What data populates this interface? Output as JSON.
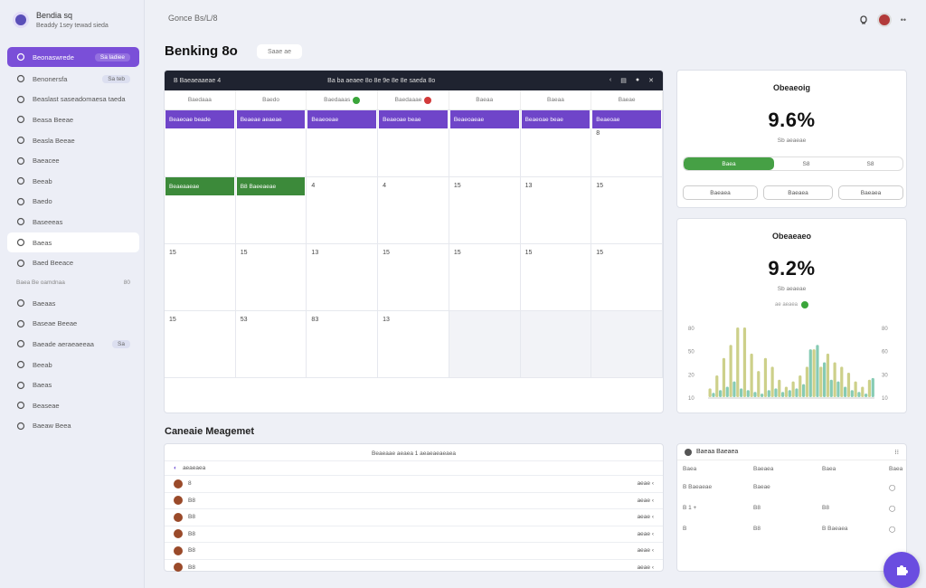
{
  "brand": {
    "name": "Bendia sq",
    "tagline": "Beaddy 1sey tewad sieda"
  },
  "sidebar": {
    "items": [
      {
        "label": "Beonaswrede",
        "badge": "Sa ladiee",
        "icon": "calendar-icon",
        "active": true
      },
      {
        "label": "Benonersfa",
        "badge": "Sa teb",
        "icon": "grid-icon"
      },
      {
        "label": "Beaslast saseadomaesa taeda",
        "icon": "clock-icon"
      },
      {
        "label": "Beasa Beeae",
        "icon": "chart-icon"
      },
      {
        "label": "Beasla Beeae",
        "icon": "chart-icon"
      },
      {
        "label": "Baeacee",
        "icon": "user-icon"
      },
      {
        "label": "Beeab",
        "icon": "user-icon"
      },
      {
        "label": "Baedo",
        "icon": "tag-icon"
      },
      {
        "label": "Baseeeas",
        "icon": "users-icon"
      },
      {
        "label": "Baeas",
        "icon": "gear-icon",
        "highlight": true
      },
      {
        "label": "Baed Beeace",
        "icon": "folder-icon"
      }
    ],
    "section_label": "Baea Be oamdnaa",
    "section_badge": "80",
    "items2": [
      {
        "label": "Baeaas",
        "icon": "user-icon"
      },
      {
        "label": "Baseae Beeae",
        "icon": "clock-icon"
      },
      {
        "label": "Baeade aeraeaeeaa",
        "badge": "Sa",
        "icon": "clock-icon"
      },
      {
        "label": "Beeab",
        "icon": "user-icon"
      },
      {
        "label": "Baeas",
        "icon": "user-icon"
      },
      {
        "label": "Beaseae",
        "icon": "user-icon"
      },
      {
        "label": "Baeaw Beea",
        "icon": "users-icon"
      }
    ]
  },
  "header": {
    "breadcrumb": "Gonce Bs/L/8",
    "title": "Benking 8o",
    "title_pill": "Saae ae"
  },
  "calendar": {
    "toolbar_label": "B Baeaeaaeae 4",
    "toolbar_center": "Ba ba aeaee 8o 8e 9e 8e 8e saeda 8o",
    "days": [
      "Baedaaa",
      "Baedo",
      "Baedaaas",
      "Baedaaae",
      "Baeaa",
      "Baeaa",
      "Baeae"
    ],
    "day_dots": [
      "",
      "",
      "#3aa53a",
      "#d23a3a",
      "",
      "",
      ""
    ],
    "events_row1": [
      "Beaeoae beade",
      "Beaeae aeaeae",
      "Beaeoeae",
      "Beaeoae beae",
      "Beaeoaeae",
      "Beaeoae beae",
      "Beaeoae"
    ],
    "events_row2": [
      "Beaeaaeae",
      "B8 Baeeaeae"
    ],
    "row1_extra": "8",
    "row2_nums": [
      "",
      "",
      "4",
      "4",
      "15",
      "13",
      "15"
    ],
    "row3_nums": [
      "15",
      "15",
      "13",
      "15",
      "15",
      "15",
      "15"
    ],
    "row4_nums": [
      "15",
      "53",
      "83",
      "13",
      "",
      "",
      ""
    ]
  },
  "stat1": {
    "title": "Obeaeoig",
    "value": "9.6%",
    "sub": "Sb aeaeae",
    "seg": [
      "Baea",
      "S8",
      "S8"
    ],
    "buttons": [
      "Baeaea",
      "Baeaea",
      "Baeaea"
    ]
  },
  "stat2": {
    "title": "Obeaeaeo",
    "value": "9.2%",
    "sub": "Sb aeaeae",
    "legend": "ae aeaea",
    "y_ticks": [
      "80",
      "50",
      "20",
      "10"
    ],
    "right_ticks": [
      "80",
      "60",
      "30",
      "10"
    ]
  },
  "chart_data": {
    "type": "bar",
    "series": [
      {
        "values": [
          10,
          25,
          45,
          60,
          80,
          80,
          50,
          30,
          45,
          35,
          20,
          12,
          18,
          25,
          35,
          55,
          35,
          50,
          40,
          35,
          28,
          18,
          12,
          20
        ]
      },
      {
        "values": [
          5,
          8,
          12,
          18,
          10,
          8,
          6,
          4,
          8,
          10,
          6,
          8,
          10,
          15,
          55,
          60,
          40,
          20,
          18,
          12,
          8,
          6,
          4,
          22
        ]
      }
    ],
    "colors": [
      "#cdd08a",
      "#86cbb4"
    ]
  },
  "management": {
    "title": "Caneaie Meagemet",
    "list_header": "Beaeaae aeaea 1 aeaeaeaeaea",
    "list_first": "aeaeaea"
  },
  "rows": [
    {
      "name": "8",
      "right": "aeae ‹"
    },
    {
      "name": "B8",
      "right": "aeae ‹"
    },
    {
      "name": "B8",
      "right": "aeae ‹"
    },
    {
      "name": "B8",
      "right": "aeae ‹"
    },
    {
      "name": "B8",
      "right": "aeae ‹"
    },
    {
      "name": "B8",
      "right": "aeae ‹"
    }
  ],
  "table": {
    "title": "Baeaa Baeaea",
    "cols": [
      "Baea",
      "Baeaea",
      "Baea",
      "Baea"
    ],
    "rows": [
      [
        "B Baeaeae",
        "Baeae",
        "",
        ""
      ],
      [
        "B  1  +",
        "B8",
        "B8",
        ""
      ],
      [
        "B",
        "B8",
        "B Baeaea",
        ""
      ]
    ]
  }
}
